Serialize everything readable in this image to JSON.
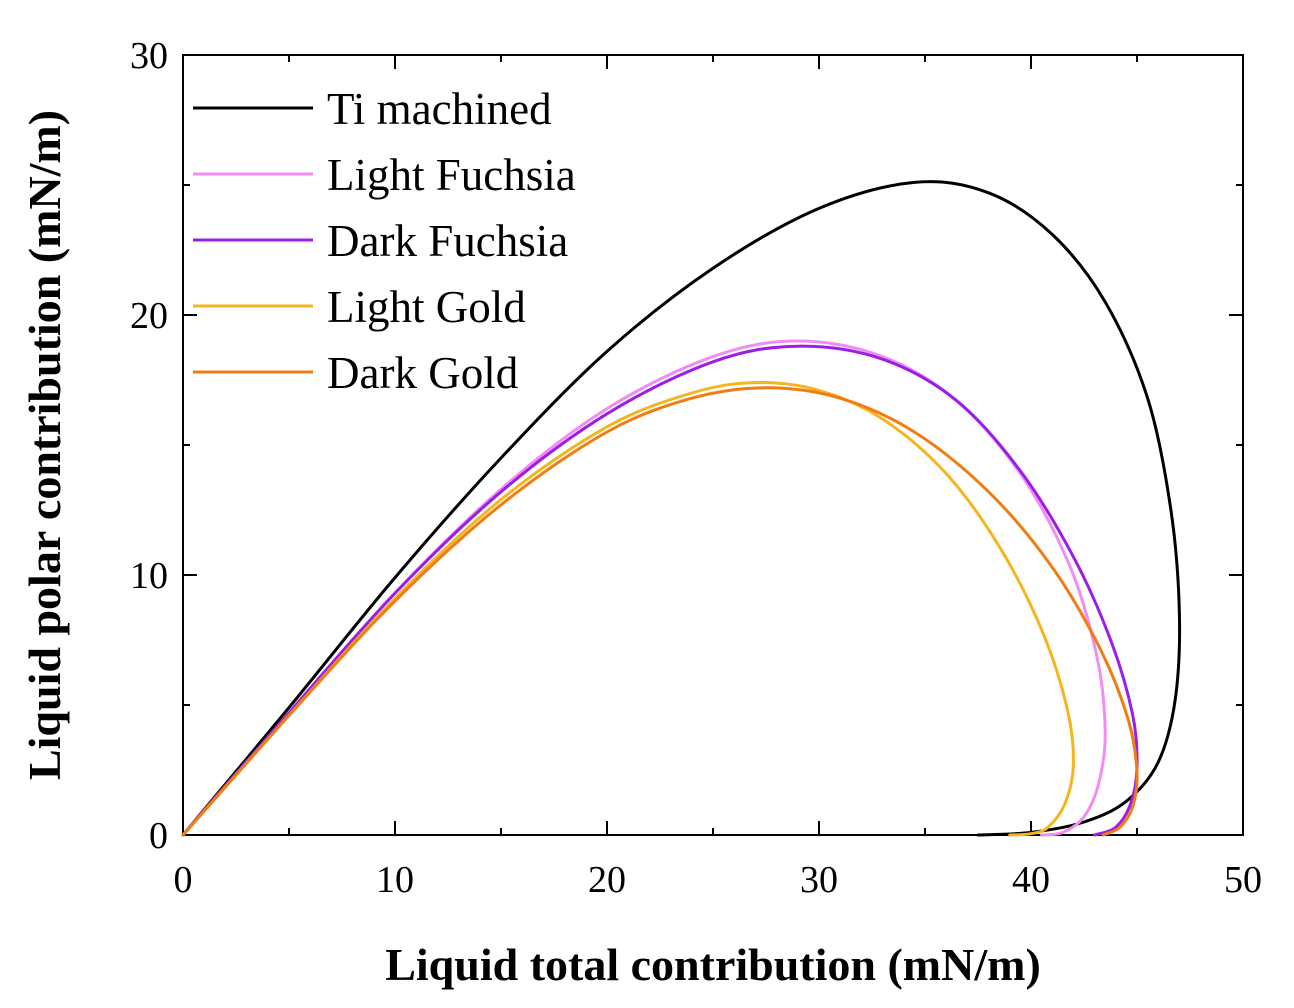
{
  "chart_data": {
    "type": "line",
    "title": "",
    "xlabel": "Liquid total contribution (mN/m)",
    "ylabel": "Liquid polar contribution (mN/m)",
    "xlim": [
      0,
      50
    ],
    "ylim": [
      0,
      30
    ],
    "xticks": [
      0,
      10,
      20,
      30,
      40,
      50
    ],
    "yticks": [
      0,
      10,
      20,
      30
    ],
    "xtick_labels": [
      "0",
      "10",
      "20",
      "30",
      "40",
      "50"
    ],
    "ytick_labels": [
      "0",
      "10",
      "20",
      "30"
    ],
    "grid": false,
    "legend_position": "top-left",
    "series": [
      {
        "name": "Ti machined",
        "color": "#000000",
        "points": [
          [
            0,
            0
          ],
          [
            5,
            4.9
          ],
          [
            10,
            9.9
          ],
          [
            15,
            14.5
          ],
          [
            20,
            18.6
          ],
          [
            25,
            21.8
          ],
          [
            30,
            24.1
          ],
          [
            34.5,
            25.1
          ],
          [
            38,
            24.7
          ],
          [
            41,
            23.1
          ],
          [
            43.5,
            20.5
          ],
          [
            45.5,
            16.8
          ],
          [
            46.6,
            12.5
          ],
          [
            47,
            8.5
          ],
          [
            46.8,
            5.2
          ],
          [
            46,
            2.8
          ],
          [
            44.5,
            1.3
          ],
          [
            42.5,
            0.5
          ],
          [
            40,
            0.1
          ],
          [
            37.5,
            0
          ]
        ]
      },
      {
        "name": "Light Fuchsia",
        "color": "#f28cf2",
        "points": [
          [
            0,
            0
          ],
          [
            5,
            4.7
          ],
          [
            10,
            9.3
          ],
          [
            15,
            13.3
          ],
          [
            20,
            16.4
          ],
          [
            25,
            18.4
          ],
          [
            29,
            19
          ],
          [
            33,
            18.4
          ],
          [
            36.5,
            16.7
          ],
          [
            39.5,
            13.9
          ],
          [
            41.8,
            10.4
          ],
          [
            43.1,
            6.9
          ],
          [
            43.5,
            4
          ],
          [
            43.2,
            2
          ],
          [
            42.5,
            0.7
          ],
          [
            41.5,
            0.1
          ],
          [
            40.5,
            0
          ]
        ]
      },
      {
        "name": "Dark Fuchsia",
        "color": "#9b1ee6",
        "points": [
          [
            0,
            0
          ],
          [
            5,
            4.7
          ],
          [
            10,
            9.3
          ],
          [
            15,
            13.2
          ],
          [
            20,
            16.2
          ],
          [
            25,
            18.2
          ],
          [
            29,
            18.8
          ],
          [
            33,
            18.3
          ],
          [
            36.5,
            16.7
          ],
          [
            39.5,
            14
          ],
          [
            42,
            10.7
          ],
          [
            43.8,
            7.4
          ],
          [
            44.8,
            4.6
          ],
          [
            45,
            2.6
          ],
          [
            44.7,
            1.2
          ],
          [
            44,
            0.3
          ],
          [
            43,
            0
          ]
        ]
      },
      {
        "name": "Light Gold",
        "color": "#f5b51e",
        "points": [
          [
            0,
            0
          ],
          [
            5,
            4.6
          ],
          [
            10,
            9.1
          ],
          [
            15,
            12.9
          ],
          [
            20,
            15.7
          ],
          [
            24,
            17
          ],
          [
            27,
            17.4
          ],
          [
            30,
            17.1
          ],
          [
            33,
            16
          ],
          [
            36,
            13.9
          ],
          [
            38.5,
            11.1
          ],
          [
            40.5,
            7.9
          ],
          [
            41.7,
            4.9
          ],
          [
            42,
            2.7
          ],
          [
            41.6,
            1.2
          ],
          [
            40.8,
            0.3
          ],
          [
            40,
            0.05
          ],
          [
            39,
            0
          ]
        ]
      },
      {
        "name": "Dark Gold",
        "color": "#f07d14",
        "points": [
          [
            0,
            0
          ],
          [
            5,
            4.6
          ],
          [
            10,
            9
          ],
          [
            15,
            12.7
          ],
          [
            20,
            15.5
          ],
          [
            24,
            16.8
          ],
          [
            27.5,
            17.2
          ],
          [
            31,
            16.8
          ],
          [
            34.5,
            15.5
          ],
          [
            38,
            13.2
          ],
          [
            41,
            10.3
          ],
          [
            43.3,
            7.1
          ],
          [
            44.6,
            4.4
          ],
          [
            45,
            2.4
          ],
          [
            44.8,
            1.1
          ],
          [
            44.2,
            0.3
          ],
          [
            43.4,
            0
          ]
        ]
      }
    ]
  }
}
